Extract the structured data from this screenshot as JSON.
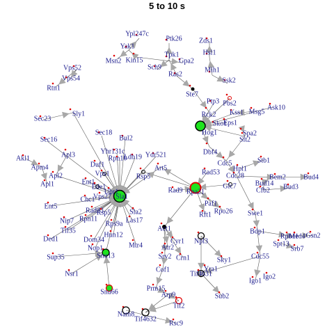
{
  "title": "5 to 10 s",
  "colors": {
    "hub_fill": "#1ee31e",
    "hub_ring": "#000000",
    "red_ring": "#e00000",
    "label": "#1a1a8c",
    "arrow": "#a8a8a8",
    "edge": "#555555"
  },
  "nodes": [
    {
      "label": "Ypl247c"
    },
    {
      "label": "Yak1"
    },
    {
      "label": "Msn2"
    },
    {
      "label": "Kin15"
    },
    {
      "label": "Ptk26"
    },
    {
      "label": "Tpk1"
    },
    {
      "label": "Gpa2"
    },
    {
      "label": "Sch9"
    },
    {
      "label": "Ras2"
    },
    {
      "label": "Zds1"
    },
    {
      "label": "Hsl1"
    },
    {
      "label": "Mih1"
    },
    {
      "label": "Ssk2"
    },
    {
      "label": "Ste7"
    },
    {
      "label": "Vps52"
    },
    {
      "label": "Vps54"
    },
    {
      "label": "Rtn1"
    },
    {
      "label": "Ptp3"
    },
    {
      "label": "Pbs2"
    },
    {
      "label": "Kss1"
    },
    {
      "label": "Msg5"
    },
    {
      "label": "Ask10"
    },
    {
      "label": "Rck2"
    },
    {
      "label": "Sko1"
    },
    {
      "label": "Hog1"
    },
    {
      "label": "Eps1"
    },
    {
      "label": "Spa2"
    },
    {
      "label": "Slt2"
    },
    {
      "label": "Sec23"
    },
    {
      "label": "Sly1"
    },
    {
      "label": "Sec18"
    },
    {
      "label": "Bul2"
    },
    {
      "label": "Sec16"
    },
    {
      "label": "Yhr131c"
    },
    {
      "label": "Ydr521"
    },
    {
      "label": "Ldb19"
    },
    {
      "label": "Art5"
    },
    {
      "label": "Apl3"
    },
    {
      "label": "Rpn10"
    },
    {
      "label": "Duf1"
    },
    {
      "label": "Akl1"
    },
    {
      "label": "Apm4"
    },
    {
      "label": "Apl2"
    },
    {
      "label": "Apl1"
    },
    {
      "label": "Vps1"
    },
    {
      "label": "Rsp5"
    },
    {
      "label": "Dbf4"
    },
    {
      "label": "Cdc5"
    },
    {
      "label": "Hpl1"
    },
    {
      "label": "Cdc28"
    },
    {
      "label": "Stb1"
    },
    {
      "label": "Rad53"
    },
    {
      "label": "Bem2"
    },
    {
      "label": "Bud4"
    },
    {
      "label": "Bud14"
    },
    {
      "label": "Cfb2"
    },
    {
      "label": "Bud3"
    },
    {
      "label": "Glc7"
    },
    {
      "label": "Ent1"
    },
    {
      "label": "Ede1"
    },
    {
      "label": "Ubr1"
    },
    {
      "label": "Chc1"
    },
    {
      "label": "Vps27"
    },
    {
      "label": "Sla1"
    },
    {
      "label": "Ent5"
    },
    {
      "label": "Rad9"
    },
    {
      "label": "Rpa21"
    },
    {
      "label": "Rad23"
    },
    {
      "label": "Rsp5"
    },
    {
      "label": "Sla2"
    },
    {
      "label": "Paf1"
    },
    {
      "label": "Rpo26"
    },
    {
      "label": "Rft1"
    },
    {
      "label": "Swe1"
    },
    {
      "label": "Nip7"
    },
    {
      "label": "Rpn11"
    },
    {
      "label": "Tif35"
    },
    {
      "label": "Las17"
    },
    {
      "label": "Rps9a"
    },
    {
      "label": "Hun12"
    },
    {
      "label": "Act1"
    },
    {
      "label": "Bdp1"
    },
    {
      "label": "Rpb11"
    },
    {
      "label": "Med4"
    },
    {
      "label": "Gsn2"
    },
    {
      "label": "Spt13"
    },
    {
      "label": "Srb7"
    },
    {
      "label": "Ded1"
    },
    {
      "label": "Dom34"
    },
    {
      "label": "Nop1"
    },
    {
      "label": "Mtr4"
    },
    {
      "label": "Cyr1"
    },
    {
      "label": "Npl3"
    },
    {
      "label": "Snu13"
    },
    {
      "label": "Atr2"
    },
    {
      "label": "Srv2"
    },
    {
      "label": "Crn1"
    },
    {
      "label": "Sky1"
    },
    {
      "label": "Sup35"
    },
    {
      "label": "Cdc55"
    },
    {
      "label": "Yra1"
    },
    {
      "label": "Nsr1"
    },
    {
      "label": "Cof1"
    },
    {
      "label": "Tif4631"
    },
    {
      "label": "Igo1"
    },
    {
      "label": "Igo2"
    },
    {
      "label": "Prm15"
    },
    {
      "label": "Snu66"
    },
    {
      "label": "Arp9"
    },
    {
      "label": "Sub2"
    },
    {
      "label": "Tif2"
    },
    {
      "label": "Nam8"
    },
    {
      "label": "Tif4632"
    },
    {
      "label": "Rsc9"
    }
  ]
}
